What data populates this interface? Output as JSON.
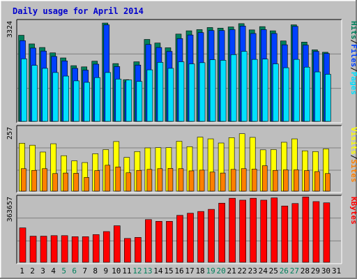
{
  "chart_data": {
    "type": "bar",
    "title": "Daily usage for April 2014",
    "categories": [
      "1",
      "2",
      "3",
      "4",
      "5",
      "6",
      "7",
      "8",
      "9",
      "10",
      "11",
      "12",
      "13",
      "14",
      "15",
      "16",
      "17",
      "18",
      "19",
      "20",
      "21",
      "22",
      "23",
      "24",
      "25",
      "26",
      "27",
      "28",
      "29",
      "30",
      "31"
    ],
    "weekend_days": [
      "5",
      "6",
      "12",
      "13",
      "19",
      "20",
      "26",
      "27"
    ],
    "colors": {
      "background": "#C0C0C0",
      "plot_background": "#BEBEBE",
      "title": "#0000CC",
      "hits": "#00805C",
      "files": "#0040FF",
      "pages": "#00E0FF",
      "visits": "#FFFF00",
      "sites": "#FF8000",
      "kbytes": "#FF0000",
      "weekend_label": "#00805C",
      "weekday_label": "#000000"
    },
    "panels": [
      {
        "id": "hits_files_pages",
        "ymax_label": "3324",
        "ymax": 3324,
        "legend": [
          {
            "text": "Hits",
            "color": "#00805C"
          },
          {
            "text": "/",
            "color": "#000000"
          },
          {
            "text": "Files",
            "color": "#0040FF"
          },
          {
            "text": "/",
            "color": "#000000"
          },
          {
            "text": "Pages",
            "color": "#00E0FF"
          }
        ],
        "series": [
          {
            "name": "Hits",
            "color": "#00805C",
            "values": [
              2890,
              2600,
              2480,
              2300,
              2130,
              1870,
              1830,
              2020,
              3300,
              1940,
              1400,
              2000,
              2750,
              2630,
              2470,
              2930,
              3040,
              3080,
              3150,
              3130,
              3170,
              3280,
              3070,
              3180,
              3040,
              2700,
              3240,
              2660,
              2400,
              2320,
              0
            ]
          },
          {
            "name": "Files",
            "color": "#0040FF",
            "values": [
              2710,
              2460,
              2360,
              2180,
              2030,
              1780,
              1720,
              1920,
              3240,
              1840,
              1330,
              1890,
              2580,
              2480,
              2350,
              2780,
              2900,
              2980,
              3050,
              3050,
              3080,
              3200,
              2950,
              3080,
              2950,
              2570,
              3190,
              2560,
              2350,
              2280,
              0
            ]
          },
          {
            "name": "Pages",
            "color": "#00E0FF",
            "values": [
              2100,
              1880,
              1780,
              1640,
              1520,
              1360,
              1310,
              1470,
              1640,
              1420,
              1390,
              1340,
              1730,
              1980,
              1780,
              2000,
              1930,
              1970,
              2070,
              2050,
              2240,
              2350,
              2080,
              2090,
              1930,
              1800,
              2080,
              1820,
              1660,
              1580,
              0
            ]
          }
        ]
      },
      {
        "id": "visits_sites",
        "ymax_label": "257",
        "ymax": 257,
        "legend": [
          {
            "text": "Visits",
            "color": "#FFFF00"
          },
          {
            "text": "/",
            "color": "#000000"
          },
          {
            "text": "Sites",
            "color": "#FF8000"
          }
        ],
        "series": [
          {
            "name": "Visits",
            "color": "#FFFF00",
            "values": [
              196,
              188,
              160,
              194,
              145,
              124,
              117,
              153,
              170,
              203,
              138,
              162,
              177,
              178,
              178,
              204,
              182,
              221,
              214,
              197,
              219,
              235,
              220,
              169,
              170,
              200,
              214,
              165,
              162,
              173,
              0
            ]
          },
          {
            "name": "Sites",
            "color": "#FF8000",
            "values": [
              92,
              85,
              92,
              72,
              74,
              73,
              56,
              84,
              106,
              99,
              75,
              85,
              89,
              92,
              93,
              92,
              83,
              86,
              78,
              74,
              89,
              92,
              90,
              104,
              85,
              87,
              87,
              84,
              80,
              72,
              0
            ]
          }
        ]
      },
      {
        "id": "kbytes",
        "ymax_label": "363657",
        "ymax": 363657,
        "legend": [
          {
            "text": "KBytes",
            "color": "#FF0000"
          }
        ],
        "series": [
          {
            "name": "KBytes",
            "color": "#FF0000",
            "values": [
              195000,
              148000,
              148000,
              151000,
              151000,
              145000,
              145000,
              157000,
              174000,
              207000,
              135000,
              141000,
              242000,
              232000,
              232000,
              266000,
              278000,
              288000,
              300000,
              335000,
              363000,
              352000,
              363000,
              352000,
              365000,
              319000,
              333000,
              370000,
              344000,
              337000,
              0
            ]
          }
        ]
      }
    ]
  }
}
